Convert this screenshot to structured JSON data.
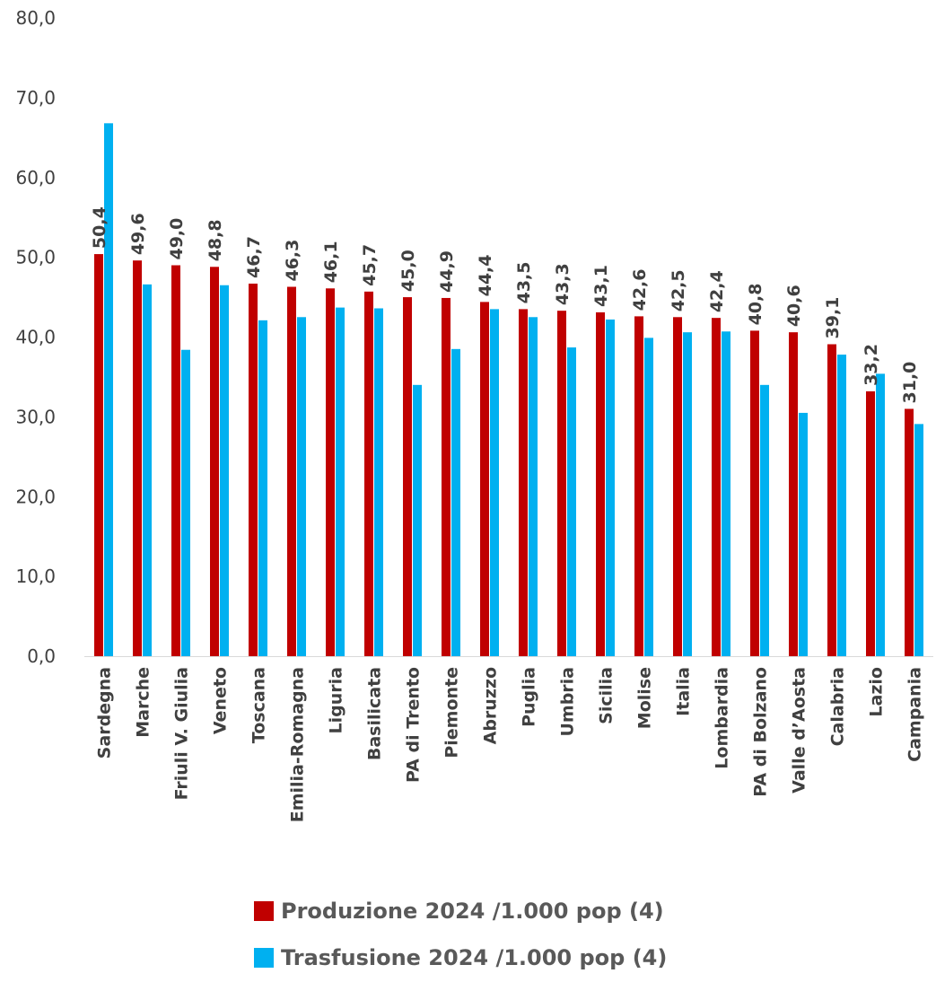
{
  "chart_data": {
    "type": "bar",
    "categories": [
      "Sardegna",
      "Marche",
      "Friuli V. Giulia",
      "Veneto",
      "Toscana",
      "Emilia-Romagna",
      "Liguria",
      "Basilicata",
      "PA di Trento",
      "Piemonte",
      "Abruzzo",
      "Puglia",
      "Umbria",
      "Sicilia",
      "Molise",
      "Italia",
      "Lombardia",
      "PA di Bolzano",
      "Valle d’Aosta",
      "Calabria",
      "Lazio",
      "Campania"
    ],
    "series": [
      {
        "name": "Produzione 2024 /1.000 pop (4)",
        "color": "#C00000",
        "values": [
          50.4,
          49.6,
          49.0,
          48.8,
          46.7,
          46.3,
          46.1,
          45.7,
          45.0,
          44.9,
          44.4,
          43.5,
          43.3,
          43.1,
          42.6,
          42.5,
          42.4,
          40.8,
          40.6,
          39.1,
          33.2,
          31.0
        ],
        "labels": [
          "50,4",
          "49,6",
          "49,0",
          "48,8",
          "46,7",
          "46,3",
          "46,1",
          "45,7",
          "45,0",
          "44,9",
          "44,4",
          "43,5",
          "43,3",
          "43,1",
          "42,6",
          "42,5",
          "42,4",
          "40,8",
          "40,6",
          "39,1",
          "33,2",
          "31,0"
        ]
      },
      {
        "name": "Trasfusione 2024 /1.000 pop (4)",
        "color": "#00B0F0",
        "values": [
          66.8,
          46.6,
          38.4,
          46.5,
          42.1,
          42.5,
          43.7,
          43.6,
          34.0,
          38.5,
          43.5,
          42.5,
          38.7,
          42.2,
          39.9,
          40.6,
          40.7,
          34.0,
          30.5,
          37.8,
          35.4,
          29.1
        ]
      }
    ],
    "ylim": [
      0,
      80
    ],
    "yticks": [
      "0,0",
      "10,0",
      "20,0",
      "30,0",
      "40,0",
      "50,0",
      "60,0",
      "70,0",
      "80,0"
    ],
    "grid": false,
    "legend_position": "bottom"
  }
}
